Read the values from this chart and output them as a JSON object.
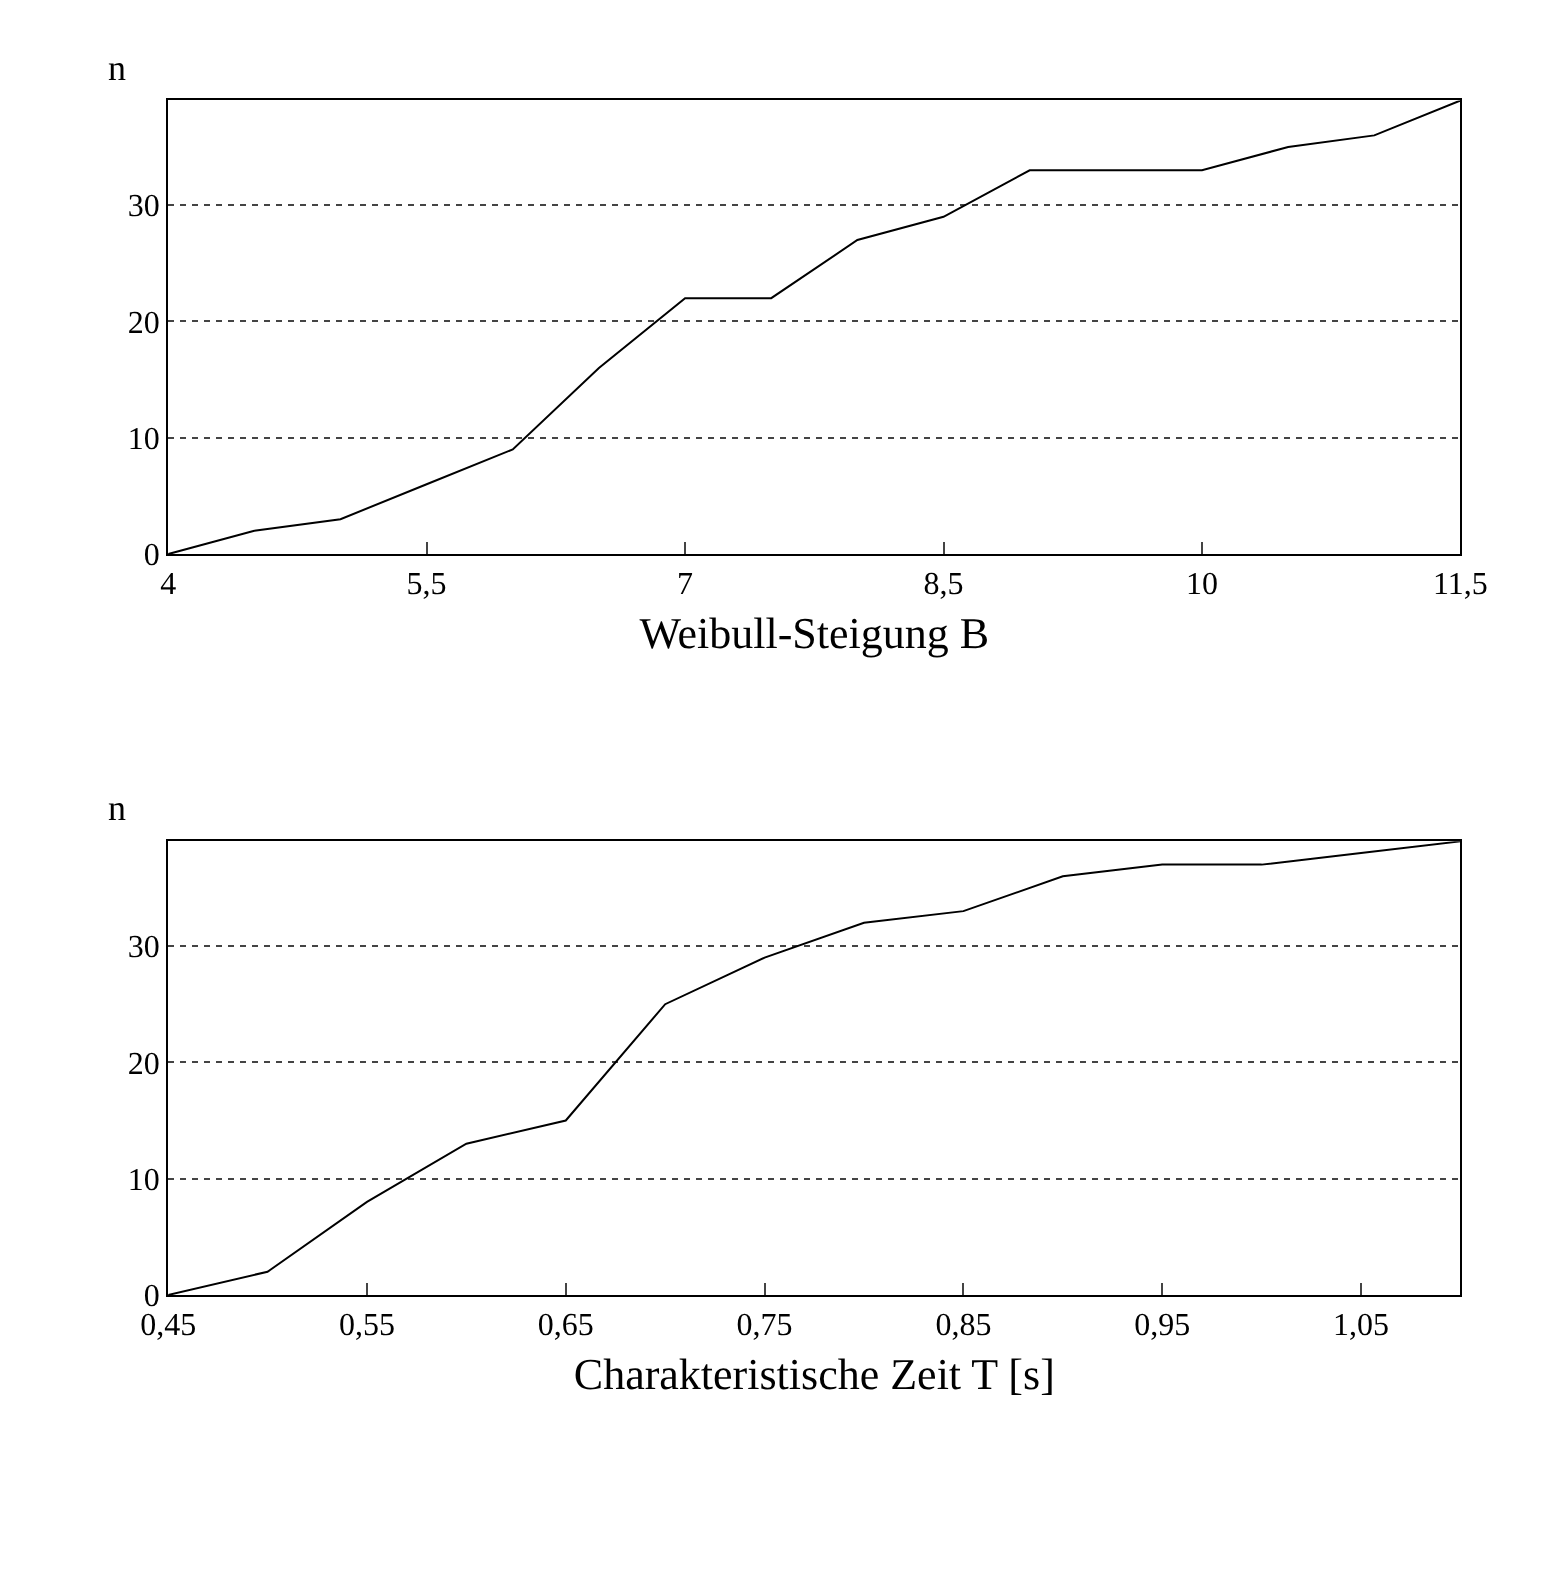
{
  "chart_data": [
    {
      "type": "line",
      "xlabel": "Weibull-Steigung B",
      "ylabel": "n",
      "x": [
        4,
        4.5,
        5,
        5.5,
        6,
        6.5,
        7,
        7.5,
        8,
        8.5,
        9,
        9.5,
        10,
        10.5,
        11,
        11.5
      ],
      "series": [
        {
          "color": "#000000",
          "values": [
            0,
            2,
            3,
            6,
            9,
            16,
            22,
            22,
            27,
            29,
            33,
            33,
            33,
            35,
            36,
            39
          ]
        }
      ],
      "xlim": [
        4,
        11.5
      ],
      "xticks": [
        4,
        {
          "value": 5.5,
          "label": "5,5"
        },
        7,
        {
          "value": 8.5,
          "label": "8,5"
        },
        10,
        {
          "value": 11.5,
          "label": "11,5"
        }
      ],
      "ylim": [
        0,
        39
      ],
      "yticks": [
        0,
        10,
        20,
        30
      ],
      "grid": "y",
      "marker": "none",
      "line_style": "solid"
    },
    {
      "type": "line",
      "xlabel": "Charakteristische Zeit T [s]",
      "ylabel": "n",
      "x": [
        0.45,
        0.5,
        0.55,
        0.6,
        0.65,
        0.7,
        0.75,
        0.8,
        0.85,
        0.9,
        0.95,
        1.0,
        1.05,
        1.1
      ],
      "series": [
        {
          "color": "#000000",
          "values": [
            0,
            2,
            8,
            13,
            15,
            25,
            29,
            32,
            33,
            36,
            37,
            37,
            38,
            39
          ]
        }
      ],
      "xlim": [
        0.45,
        1.1
      ],
      "xticks": [
        {
          "value": 0.45,
          "label": "0,45"
        },
        {
          "value": 0.55,
          "label": "0,55"
        },
        {
          "value": 0.65,
          "label": "0,65"
        },
        {
          "value": 0.75,
          "label": "0,75"
        },
        {
          "value": 0.85,
          "label": "0,85"
        },
        {
          "value": 0.95,
          "label": "0,95"
        },
        {
          "value": 1.05,
          "label": "1,05"
        }
      ],
      "ylim": [
        0,
        39
      ],
      "yticks": [
        0,
        10,
        20,
        30
      ],
      "grid": "y",
      "marker": "none",
      "line_style": "solid"
    }
  ]
}
